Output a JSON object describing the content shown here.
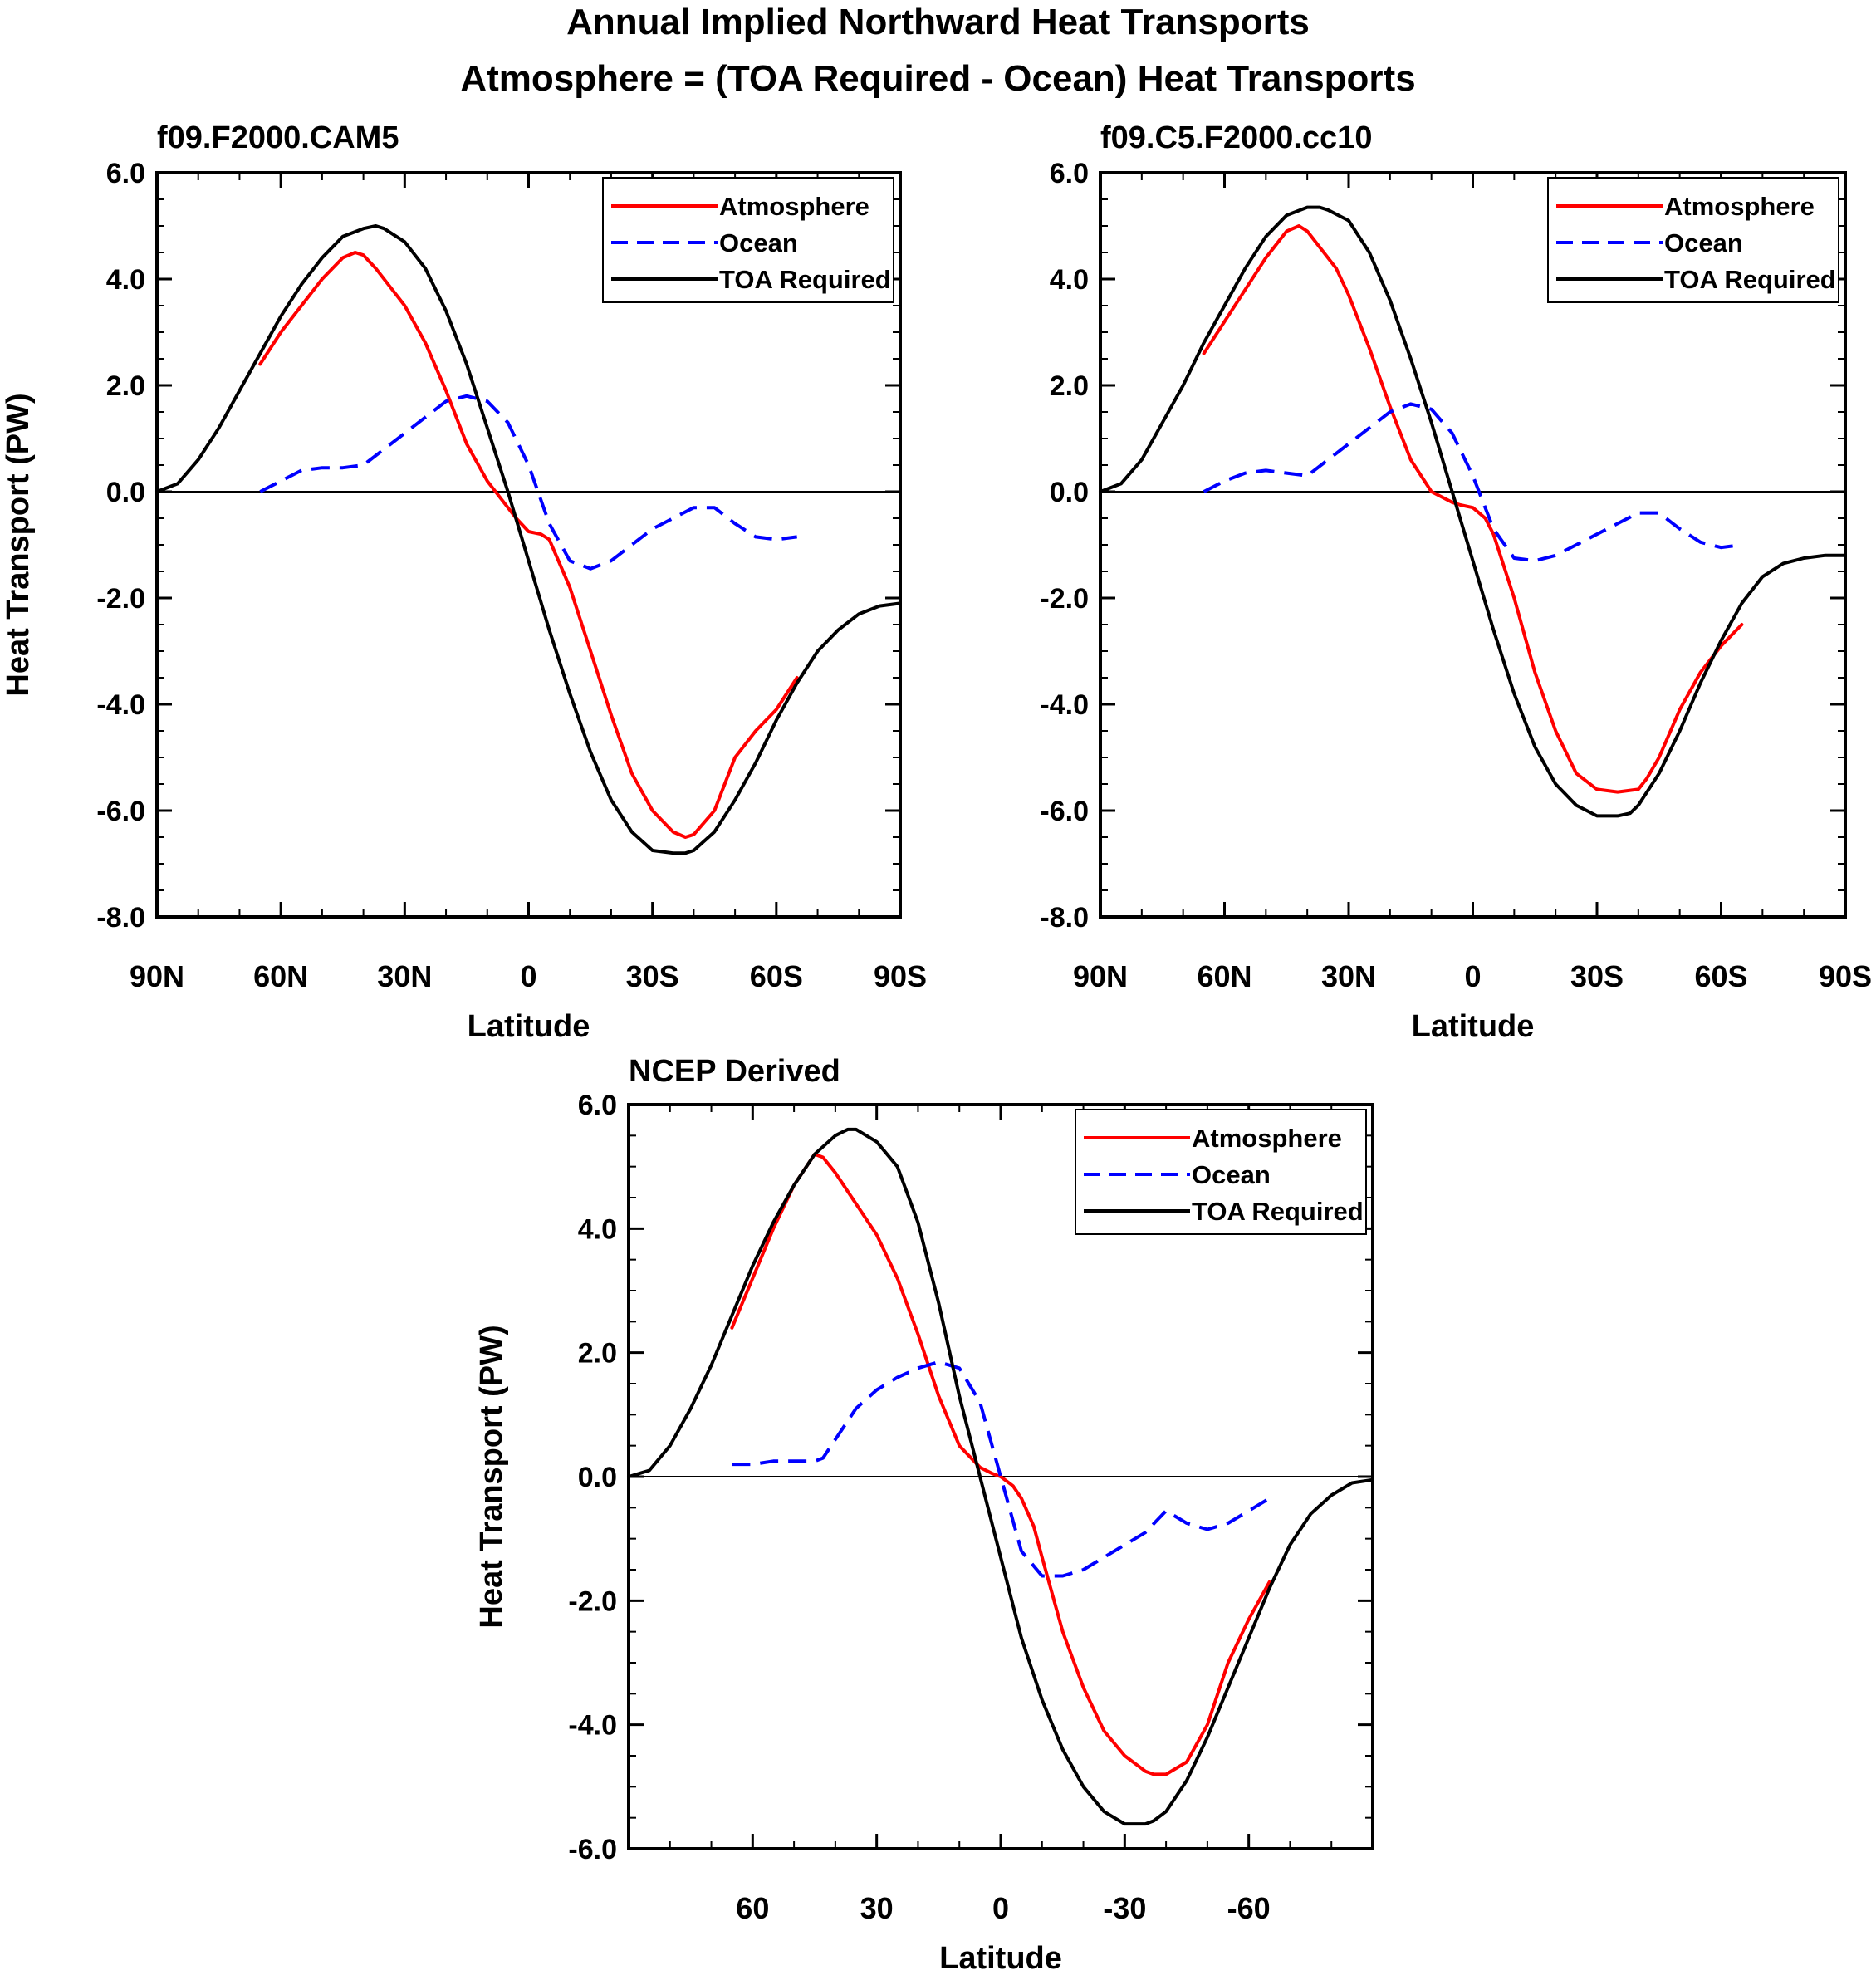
{
  "figure": {
    "title": "Annual Implied Northward Heat Transports",
    "subtitle": "Atmosphere = (TOA Required - Ocean) Heat Transports"
  },
  "colors": {
    "atmosphere": "#ff0000",
    "ocean": "#0000ff",
    "toa": "#000000"
  },
  "chart_data": [
    {
      "type": "line",
      "panel_title": "f09.F2000.CAM5",
      "xlabel": "Latitude",
      "ylabel": "Heat Transport (PW)",
      "xlim": [
        90,
        -90
      ],
      "ylim": [
        -8,
        6
      ],
      "xticks": [
        90,
        60,
        30,
        0,
        -30,
        -60,
        -90
      ],
      "xtick_labels": [
        "90N",
        "60N",
        "30N",
        "0",
        "30S",
        "60S",
        "90S"
      ],
      "yticks": [
        6,
        4,
        2,
        0,
        -2,
        -4,
        -6,
        -8
      ],
      "ytick_labels": [
        "6.0",
        "4.0",
        "2.0",
        "0.0",
        "-2.0",
        "-4.0",
        "-6.0",
        "-8.0"
      ],
      "grid": false,
      "legend_position": "top-right",
      "series": [
        {
          "name": "Atmosphere",
          "style": "solid",
          "color": "#ff0000",
          "x": [
            65,
            60,
            55,
            50,
            45,
            42,
            40,
            37,
            33,
            30,
            25,
            20,
            15,
            10,
            5,
            3,
            0,
            -3,
            -5,
            -10,
            -15,
            -20,
            -25,
            -30,
            -35,
            -38,
            -40,
            -45,
            -50,
            -55,
            -60,
            -65
          ],
          "y": [
            2.4,
            3.0,
            3.5,
            4.0,
            4.4,
            4.5,
            4.45,
            4.2,
            3.8,
            3.5,
            2.8,
            1.9,
            0.9,
            0.2,
            -0.3,
            -0.5,
            -0.75,
            -0.8,
            -0.9,
            -1.8,
            -3.0,
            -4.2,
            -5.3,
            -6.0,
            -6.4,
            -6.5,
            -6.45,
            -6.0,
            -5.0,
            -4.5,
            -4.1,
            -3.5
          ]
        },
        {
          "name": "Ocean",
          "style": "dashed",
          "color": "#0000ff",
          "x": [
            65,
            60,
            55,
            50,
            45,
            40,
            35,
            30,
            25,
            20,
            15,
            10,
            5,
            0,
            -5,
            -10,
            -15,
            -20,
            -25,
            -30,
            -35,
            -40,
            -45,
            -50,
            -55,
            -60,
            -65
          ],
          "y": [
            0.0,
            0.2,
            0.4,
            0.45,
            0.45,
            0.5,
            0.8,
            1.1,
            1.4,
            1.7,
            1.8,
            1.7,
            1.3,
            0.5,
            -0.6,
            -1.3,
            -1.45,
            -1.3,
            -1.0,
            -0.7,
            -0.5,
            -0.3,
            -0.3,
            -0.6,
            -0.85,
            -0.9,
            -0.85
          ]
        },
        {
          "name": "TOA Required",
          "style": "solid",
          "color": "#000000",
          "x": [
            90,
            85,
            80,
            75,
            70,
            65,
            60,
            55,
            50,
            45,
            40,
            37,
            35,
            30,
            25,
            20,
            15,
            10,
            5,
            0,
            -5,
            -10,
            -15,
            -20,
            -25,
            -30,
            -35,
            -38,
            -40,
            -45,
            -50,
            -55,
            -60,
            -65,
            -70,
            -75,
            -80,
            -85,
            -90
          ],
          "y": [
            0.0,
            0.15,
            0.6,
            1.2,
            1.9,
            2.6,
            3.3,
            3.9,
            4.4,
            4.8,
            4.95,
            5.0,
            4.95,
            4.7,
            4.2,
            3.4,
            2.4,
            1.2,
            0.0,
            -1.3,
            -2.6,
            -3.8,
            -4.9,
            -5.8,
            -6.4,
            -6.75,
            -6.8,
            -6.8,
            -6.75,
            -6.4,
            -5.8,
            -5.1,
            -4.3,
            -3.6,
            -3.0,
            -2.6,
            -2.3,
            -2.15,
            -2.1
          ]
        }
      ]
    },
    {
      "type": "line",
      "panel_title": "f09.C5.F2000.cc10",
      "xlabel": "Latitude",
      "ylabel": "",
      "xlim": [
        90,
        -90
      ],
      "ylim": [
        -8,
        6
      ],
      "xticks": [
        90,
        60,
        30,
        0,
        -30,
        -60,
        -90
      ],
      "xtick_labels": [
        "90N",
        "60N",
        "30N",
        "0",
        "30S",
        "60S",
        "90S"
      ],
      "yticks": [
        6,
        4,
        2,
        0,
        -2,
        -4,
        -6,
        -8
      ],
      "ytick_labels": [
        "6.0",
        "4.0",
        "2.0",
        "0.0",
        "-2.0",
        "-4.0",
        "-6.0",
        "-8.0"
      ],
      "grid": false,
      "legend_position": "top-right",
      "series": [
        {
          "name": "Atmosphere",
          "style": "solid",
          "color": "#ff0000",
          "x": [
            65,
            60,
            55,
            50,
            45,
            42,
            40,
            37,
            33,
            30,
            25,
            20,
            15,
            10,
            5,
            3,
            0,
            -3,
            -5,
            -10,
            -15,
            -20,
            -25,
            -30,
            -35,
            -40,
            -42,
            -45,
            -50,
            -55,
            -60,
            -65
          ],
          "y": [
            2.6,
            3.2,
            3.8,
            4.4,
            4.9,
            5.0,
            4.9,
            4.6,
            4.2,
            3.7,
            2.7,
            1.6,
            0.6,
            0.0,
            -0.2,
            -0.25,
            -0.3,
            -0.5,
            -0.8,
            -2.0,
            -3.4,
            -4.5,
            -5.3,
            -5.6,
            -5.65,
            -5.6,
            -5.4,
            -5.0,
            -4.1,
            -3.4,
            -2.9,
            -2.5
          ]
        },
        {
          "name": "Ocean",
          "style": "dashed",
          "color": "#0000ff",
          "x": [
            65,
            60,
            55,
            50,
            45,
            40,
            35,
            30,
            25,
            20,
            15,
            10,
            5,
            0,
            -5,
            -10,
            -15,
            -20,
            -25,
            -30,
            -35,
            -40,
            -45,
            -50,
            -55,
            -60,
            -65
          ],
          "y": [
            0.0,
            0.2,
            0.35,
            0.4,
            0.35,
            0.3,
            0.6,
            0.9,
            1.2,
            1.5,
            1.65,
            1.55,
            1.1,
            0.3,
            -0.7,
            -1.25,
            -1.3,
            -1.2,
            -1.0,
            -0.8,
            -0.6,
            -0.4,
            -0.4,
            -0.7,
            -0.95,
            -1.05,
            -1.0
          ]
        },
        {
          "name": "TOA Required",
          "style": "solid",
          "color": "#000000",
          "x": [
            90,
            85,
            80,
            75,
            70,
            65,
            60,
            55,
            50,
            45,
            40,
            37,
            35,
            30,
            25,
            20,
            15,
            10,
            5,
            0,
            -5,
            -10,
            -15,
            -20,
            -25,
            -30,
            -35,
            -38,
            -40,
            -45,
            -50,
            -55,
            -60,
            -65,
            -70,
            -75,
            -80,
            -85,
            -90
          ],
          "y": [
            0.0,
            0.15,
            0.6,
            1.3,
            2.0,
            2.8,
            3.5,
            4.2,
            4.8,
            5.2,
            5.35,
            5.35,
            5.3,
            5.1,
            4.5,
            3.6,
            2.5,
            1.3,
            0.0,
            -1.3,
            -2.6,
            -3.8,
            -4.8,
            -5.5,
            -5.9,
            -6.1,
            -6.1,
            -6.05,
            -5.9,
            -5.3,
            -4.5,
            -3.6,
            -2.8,
            -2.1,
            -1.6,
            -1.35,
            -1.25,
            -1.2,
            -1.2
          ]
        }
      ]
    },
    {
      "type": "line",
      "panel_title": "NCEP Derived",
      "xlabel": "Latitude",
      "ylabel": "Heat Transport (PW)",
      "xlim": [
        90,
        -90
      ],
      "ylim": [
        -6,
        6
      ],
      "xticks": [
        60,
        30,
        0,
        -30,
        -60
      ],
      "xtick_labels": [
        "60",
        "30",
        "0",
        "-30",
        "-60"
      ],
      "yticks": [
        6,
        4,
        2,
        0,
        -2,
        -4,
        -6
      ],
      "ytick_labels": [
        "6.0",
        "4.0",
        "2.0",
        "0.0",
        "-2.0",
        "-4.0",
        "-6.0"
      ],
      "grid": false,
      "legend_position": "top-right",
      "series": [
        {
          "name": "Atmosphere",
          "style": "solid",
          "color": "#ff0000",
          "x": [
            65,
            60,
            55,
            50,
            45,
            43,
            40,
            37,
            35,
            30,
            25,
            20,
            15,
            10,
            5,
            2,
            0,
            -3,
            -5,
            -8,
            -10,
            -15,
            -20,
            -25,
            -30,
            -35,
            -37,
            -40,
            -45,
            -50,
            -55,
            -60,
            -65
          ],
          "y": [
            2.4,
            3.2,
            4.0,
            4.7,
            5.2,
            5.15,
            4.9,
            4.6,
            4.4,
            3.9,
            3.2,
            2.3,
            1.3,
            0.5,
            0.15,
            0.05,
            0.0,
            -0.15,
            -0.35,
            -0.8,
            -1.3,
            -2.5,
            -3.4,
            -4.1,
            -4.5,
            -4.75,
            -4.8,
            -4.8,
            -4.6,
            -4.0,
            -3.0,
            -2.3,
            -1.7
          ]
        },
        {
          "name": "Ocean",
          "style": "dashed",
          "color": "#0000ff",
          "x": [
            65,
            60,
            55,
            50,
            45,
            43,
            40,
            35,
            30,
            25,
            20,
            15,
            10,
            5,
            0,
            -5,
            -10,
            -15,
            -20,
            -25,
            -30,
            -35,
            -40,
            -45,
            -50,
            -55,
            -60,
            -65
          ],
          "y": [
            0.2,
            0.2,
            0.25,
            0.25,
            0.25,
            0.3,
            0.6,
            1.1,
            1.4,
            1.6,
            1.75,
            1.85,
            1.75,
            1.2,
            0.0,
            -1.2,
            -1.6,
            -1.6,
            -1.5,
            -1.3,
            -1.1,
            -0.9,
            -0.55,
            -0.75,
            -0.85,
            -0.75,
            -0.55,
            -0.35
          ]
        },
        {
          "name": "TOA Required",
          "style": "solid",
          "color": "#000000",
          "x": [
            90,
            85,
            80,
            75,
            70,
            65,
            60,
            55,
            50,
            45,
            40,
            37,
            35,
            30,
            25,
            20,
            15,
            10,
            5,
            0,
            -5,
            -10,
            -15,
            -20,
            -25,
            -30,
            -35,
            -37,
            -40,
            -45,
            -50,
            -55,
            -60,
            -65,
            -70,
            -75,
            -80,
            -85,
            -90
          ],
          "y": [
            0.0,
            0.1,
            0.5,
            1.1,
            1.8,
            2.6,
            3.4,
            4.1,
            4.7,
            5.2,
            5.5,
            5.6,
            5.6,
            5.4,
            5.0,
            4.1,
            2.8,
            1.3,
            0.0,
            -1.3,
            -2.6,
            -3.6,
            -4.4,
            -5.0,
            -5.4,
            -5.6,
            -5.6,
            -5.55,
            -5.4,
            -4.9,
            -4.2,
            -3.4,
            -2.6,
            -1.8,
            -1.1,
            -0.6,
            -0.3,
            -0.1,
            -0.05
          ]
        }
      ]
    }
  ]
}
